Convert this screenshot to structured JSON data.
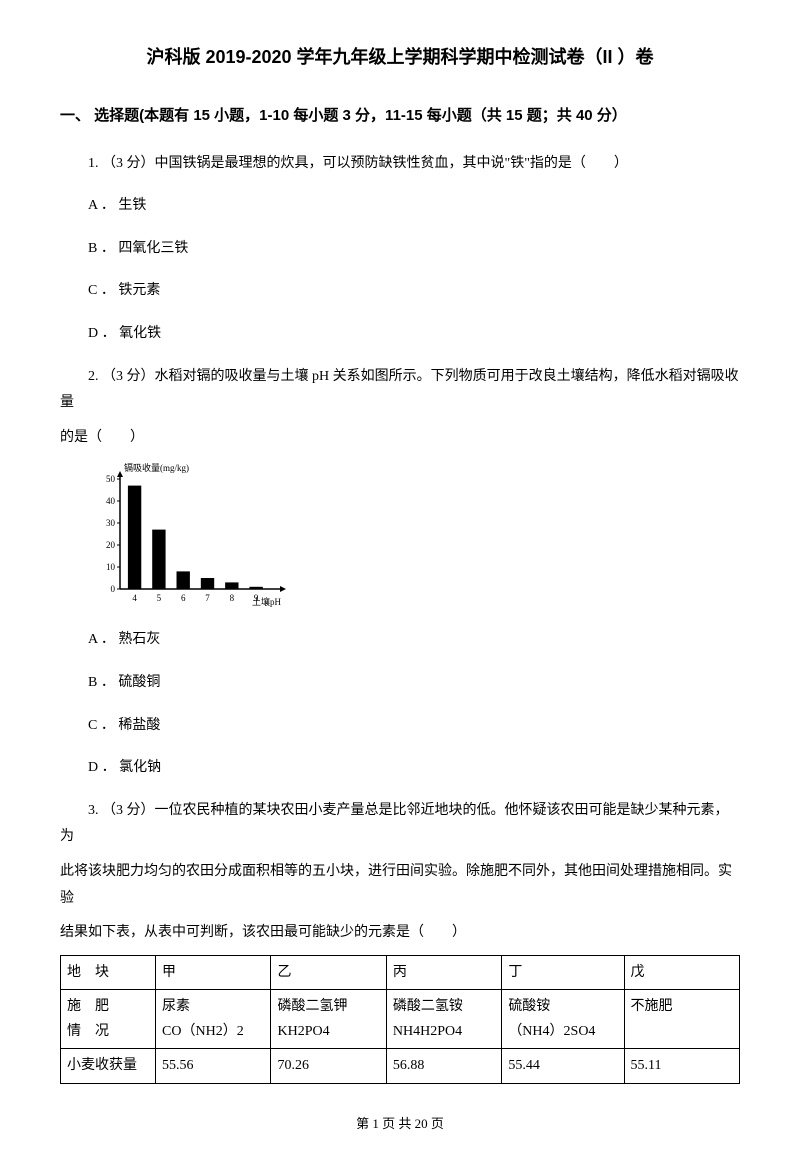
{
  "title": "沪科版 2019-2020 学年九年级上学期科学期中检测试卷（II ）卷",
  "section1": {
    "heading": "一、 选择题(本题有 15 小题，1-10 每小题 3 分，11-15 每小题（共 15 题；共 40 分）"
  },
  "q1": {
    "text": "1.  （3 分）中国铁锅是最理想的炊具，可以预防缺铁性贫血，其中说\"铁\"指的是（　　）",
    "a": "A ． 生铁",
    "b": "B ． 四氧化三铁",
    "c": "C ． 铁元素",
    "d": "D ． 氧化铁"
  },
  "q2": {
    "text1": "2.  （3 分）水稻对镉的吸收量与土壤 pH 关系如图所示。下列物质可用于改良土壤结构，降低水稻对镉吸收量",
    "text2": "的是（　　）",
    "a": "A ． 熟石灰",
    "b": "B ． 硫酸铜",
    "c": "C ． 稀盐酸",
    "d": "D ． 氯化钠",
    "chart": {
      "type": "bar",
      "ylabel": "镉吸收量(mg/kg)",
      "xlabel": "土壤pH",
      "categories": [
        "4",
        "5",
        "6",
        "7",
        "8",
        "9"
      ],
      "values": [
        47,
        27,
        8,
        5,
        3,
        1
      ],
      "ylim": [
        0,
        50
      ],
      "ytick_step": 10,
      "bar_color": "#000000",
      "axis_color": "#000000",
      "label_fontsize": 9,
      "bar_width": 0.55
    }
  },
  "q3": {
    "text1": "3.   （3 分）一位农民种植的某块农田小麦产量总是比邻近地块的低。他怀疑该农田可能是缺少某种元素，为",
    "text2": "此将该块肥力均匀的农田分成面积相等的五小块，进行田间实验。除施肥不同外，其他田间处理措施相同。实验",
    "text3": "结果如下表，从表中可判断，该农田最可能缺少的元素是（　　）",
    "table": {
      "columns": [
        "地　块",
        "甲",
        "乙",
        "丙",
        "丁",
        "戊"
      ],
      "col_widths": [
        "14%",
        "17%",
        "17%",
        "17%",
        "18%",
        "17%"
      ],
      "rows": [
        {
          "label_lines": [
            "施　肥",
            "情　况"
          ],
          "cells": [
            [
              "尿素",
              "CO（NH2）2"
            ],
            [
              "磷酸二氢钾",
              "KH2PO4"
            ],
            [
              "磷酸二氢铵",
              "NH4H2PO4"
            ],
            [
              "硫酸铵",
              "（NH4）2SO4"
            ],
            [
              "不施肥",
              ""
            ]
          ]
        },
        {
          "label_lines": [
            "小麦收获量"
          ],
          "cells": [
            [
              "55.56"
            ],
            [
              "70.26"
            ],
            [
              "56.88"
            ],
            [
              "55.44"
            ],
            [
              "55.11"
            ]
          ]
        }
      ]
    }
  },
  "footer": "第 1 页 共 20 页"
}
